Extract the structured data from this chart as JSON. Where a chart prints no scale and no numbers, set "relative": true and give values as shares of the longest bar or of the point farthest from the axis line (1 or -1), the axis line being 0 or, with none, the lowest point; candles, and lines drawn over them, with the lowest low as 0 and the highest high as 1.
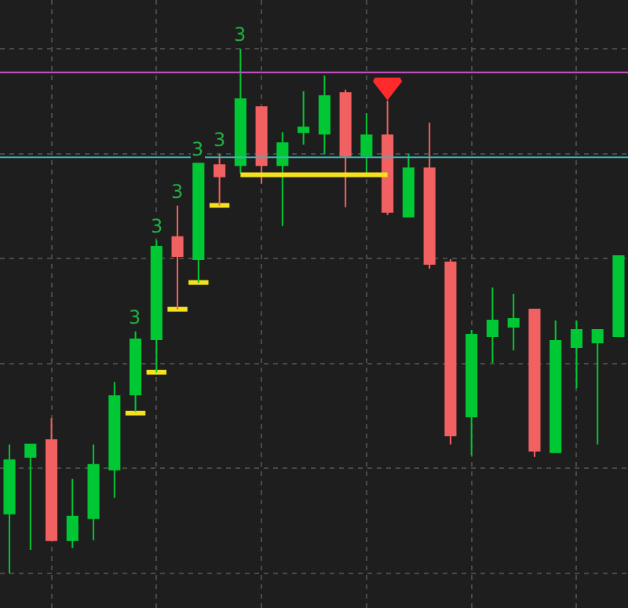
{
  "chart_data": {
    "type": "candlestick",
    "relative": true,
    "grid": true,
    "categories": [
      null,
      null,
      null,
      null,
      null,
      null,
      null,
      null,
      null,
      null,
      null,
      null,
      null,
      null,
      null,
      null,
      null,
      null,
      null,
      null,
      null,
      null,
      null,
      null,
      null,
      null,
      null,
      null,
      null,
      null
    ],
    "ohlc": [
      [
        0.114,
        0.246,
        0,
        0.216
      ],
      [
        0.222,
        0.246,
        0.045,
        0.246
      ],
      [
        0.254,
        0.296,
        0.063,
        0.063
      ],
      [
        0.063,
        0.18,
        0.048,
        0.108
      ],
      [
        0.105,
        0.246,
        0.063,
        0.207
      ],
      [
        0.198,
        0.365,
        0.144,
        0.338
      ],
      [
        0.341,
        0.461,
        0.308,
        0.446
      ],
      [
        0.446,
        0.635,
        0.383,
        0.623
      ],
      [
        0.641,
        0.701,
        0.503,
        0.605
      ],
      [
        0.599,
        0.781,
        0.554,
        0.781
      ],
      [
        0.778,
        0.799,
        0.701,
        0.757
      ],
      [
        0.778,
        1,
        0.763,
        0.904
      ],
      [
        0.889,
        0.889,
        0.743,
        0.778
      ],
      [
        0.778,
        0.841,
        0.662,
        0.82
      ],
      [
        0.841,
        0.919,
        0.817,
        0.85
      ],
      [
        0.838,
        0.949,
        0.799,
        0.91
      ],
      [
        0.916,
        0.922,
        0.698,
        0.796
      ],
      [
        0.796,
        0.877,
        0.763,
        0.835
      ],
      [
        0.835,
        0.901,
        0.683,
        0.689
      ],
      [
        0.68,
        0.799,
        0.68,
        0.772
      ],
      [
        0.772,
        0.859,
        0.581,
        0.59
      ],
      [
        0.593,
        0.599,
        0.246,
        0.263
      ],
      [
        0.299,
        0.464,
        0.225,
        0.455
      ],
      [
        0.452,
        0.545,
        0.401,
        0.482
      ],
      [
        0.47,
        0.533,
        0.425,
        0.485
      ],
      [
        0.503,
        0.503,
        0.222,
        0.234
      ],
      [
        0.231,
        0.482,
        0.231,
        0.443
      ],
      [
        0.431,
        0.482,
        0.353,
        0.464
      ],
      [
        0.44,
        0.464,
        0.246,
        0.464
      ],
      [
        0.452,
        0.605,
        0.452,
        0.605
      ]
    ],
    "colors": [
      "#00c835",
      "#00c835",
      "#f26161",
      "#00c835",
      "#00c835",
      "#00c835",
      "#00c835",
      "#00c835",
      "#f26161",
      "#00c835",
      "#f26161",
      "#00c835",
      "#f26161",
      "#00c835",
      "#00c835",
      "#00c835",
      "#f26161",
      "#00c835",
      "#f26161",
      "#00c835",
      "#f26161",
      "#f26161",
      "#00c835",
      "#00c835",
      "#00c835",
      "#f26161",
      "#00c835",
      "#00c835",
      "#00c835",
      "#00c835"
    ],
    "value_labels": [
      null,
      null,
      null,
      null,
      null,
      null,
      "3",
      "3",
      "3",
      "3",
      "3",
      "3",
      null,
      null,
      null,
      null,
      null,
      null,
      null,
      null,
      null,
      null,
      null,
      null,
      null,
      null,
      null,
      null,
      null,
      null
    ],
    "series": [
      {
        "type": "bar",
        "color": "#f5e11e",
        "base": [
          null,
          null,
          null,
          null,
          null,
          null,
          0.301,
          0.379,
          0.499,
          0.55,
          0.697,
          null,
          null,
          null,
          null,
          null,
          null,
          null,
          null,
          null,
          null,
          null,
          null,
          null,
          null,
          null,
          null,
          null,
          null,
          null
        ],
        "values": [
          null,
          null,
          null,
          null,
          null,
          null,
          0.009,
          0.009,
          0.009,
          0.009,
          0.009,
          null,
          null,
          null,
          null,
          null,
          null,
          null,
          null,
          null,
          null,
          null,
          null,
          null,
          null,
          null,
          null,
          null,
          null,
          null
        ]
      },
      {
        "type": "line",
        "color": "#f5e11e",
        "values": [
          null,
          null,
          null,
          null,
          null,
          null,
          null,
          null,
          null,
          null,
          null,
          0.76,
          0.76,
          0.76,
          0.76,
          0.76,
          0.76,
          0.76,
          0.76,
          null,
          null,
          null,
          null,
          null,
          null,
          null,
          null,
          null,
          null,
          null
        ]
      },
      {
        "type": "scatter",
        "color": "#ff2a2a",
        "marker": "triangle",
        "values": [
          null,
          null,
          null,
          null,
          null,
          null,
          null,
          null,
          null,
          null,
          null,
          null,
          null,
          null,
          null,
          null,
          null,
          null,
          0.93,
          null,
          null,
          null,
          null,
          null,
          null,
          null,
          null,
          null,
          null,
          null
        ]
      }
    ],
    "ref_lines": [
      {
        "axis": "y",
        "value": 0.955,
        "color": "#c850c8"
      },
      {
        "axis": "y",
        "value": 0.793,
        "color": "#3cb4b4"
      }
    ]
  }
}
